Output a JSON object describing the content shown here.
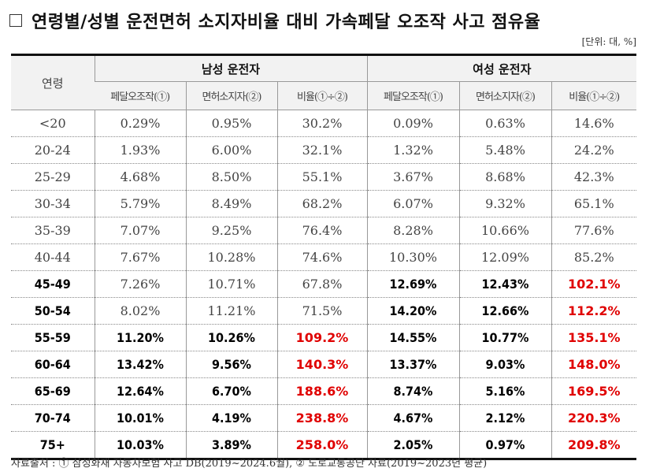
{
  "title": "연령별/성별 운전면허 소지자비율 대비 가속페달 오조작 사고 점유율",
  "unit": "[단위: 대, %]",
  "header": {
    "age": "연령",
    "male": "남성 운전자",
    "female": "여성 운전자",
    "sub": [
      "페달오조작(①)",
      "면허소지자(②)",
      "비율(①÷②)",
      "페달오조작(①)",
      "면허소지자(②)",
      "비율(①÷②)"
    ]
  },
  "rows": [
    {
      "age": "<20",
      "male": [
        "0.29%",
        "0.95%",
        "30.2%"
      ],
      "female": [
        "0.09%",
        "0.63%",
        "14.6%"
      ],
      "emphasis": {
        "age": false,
        "male": false,
        "female": false,
        "male_ratio_red": false,
        "female_ratio_red": false
      }
    },
    {
      "age": "20-24",
      "male": [
        "1.93%",
        "6.00%",
        "32.1%"
      ],
      "female": [
        "1.32%",
        "5.48%",
        "24.2%"
      ],
      "emphasis": {
        "age": false,
        "male": false,
        "female": false,
        "male_ratio_red": false,
        "female_ratio_red": false
      }
    },
    {
      "age": "25-29",
      "male": [
        "4.68%",
        "8.50%",
        "55.1%"
      ],
      "female": [
        "3.67%",
        "8.68%",
        "42.3%"
      ],
      "emphasis": {
        "age": false,
        "male": false,
        "female": false,
        "male_ratio_red": false,
        "female_ratio_red": false
      }
    },
    {
      "age": "30-34",
      "male": [
        "5.79%",
        "8.49%",
        "68.2%"
      ],
      "female": [
        "6.07%",
        "9.32%",
        "65.1%"
      ],
      "emphasis": {
        "age": false,
        "male": false,
        "female": false,
        "male_ratio_red": false,
        "female_ratio_red": false
      }
    },
    {
      "age": "35-39",
      "male": [
        "7.07%",
        "9.25%",
        "76.4%"
      ],
      "female": [
        "8.28%",
        "10.66%",
        "77.6%"
      ],
      "emphasis": {
        "age": false,
        "male": false,
        "female": false,
        "male_ratio_red": false,
        "female_ratio_red": false
      }
    },
    {
      "age": "40-44",
      "male": [
        "7.67%",
        "10.28%",
        "74.6%"
      ],
      "female": [
        "10.30%",
        "12.09%",
        "85.2%"
      ],
      "emphasis": {
        "age": false,
        "male": false,
        "female": false,
        "male_ratio_red": false,
        "female_ratio_red": false
      }
    },
    {
      "age": "45-49",
      "male": [
        "7.26%",
        "10.71%",
        "67.8%"
      ],
      "female": [
        "12.69%",
        "12.43%",
        "102.1%"
      ],
      "emphasis": {
        "age": true,
        "male": false,
        "female": true,
        "male_ratio_red": false,
        "female_ratio_red": true
      }
    },
    {
      "age": "50-54",
      "male": [
        "8.02%",
        "11.21%",
        "71.5%"
      ],
      "female": [
        "14.20%",
        "12.66%",
        "112.2%"
      ],
      "emphasis": {
        "age": true,
        "male": false,
        "female": true,
        "male_ratio_red": false,
        "female_ratio_red": true
      }
    },
    {
      "age": "55-59",
      "male": [
        "11.20%",
        "10.26%",
        "109.2%"
      ],
      "female": [
        "14.55%",
        "10.77%",
        "135.1%"
      ],
      "emphasis": {
        "age": true,
        "male": true,
        "female": true,
        "male_ratio_red": true,
        "female_ratio_red": true
      }
    },
    {
      "age": "60-64",
      "male": [
        "13.42%",
        "9.56%",
        "140.3%"
      ],
      "female": [
        "13.37%",
        "9.03%",
        "148.0%"
      ],
      "emphasis": {
        "age": true,
        "male": true,
        "female": true,
        "male_ratio_red": true,
        "female_ratio_red": true
      }
    },
    {
      "age": "65-69",
      "male": [
        "12.64%",
        "6.70%",
        "188.6%"
      ],
      "female": [
        "8.74%",
        "5.16%",
        "169.5%"
      ],
      "emphasis": {
        "age": true,
        "male": true,
        "female": true,
        "male_ratio_red": true,
        "female_ratio_red": true
      }
    },
    {
      "age": "70-74",
      "male": [
        "10.01%",
        "4.19%",
        "238.8%"
      ],
      "female": [
        "4.67%",
        "2.12%",
        "220.3%"
      ],
      "emphasis": {
        "age": true,
        "male": true,
        "female": true,
        "male_ratio_red": true,
        "female_ratio_red": true
      }
    },
    {
      "age": "75+",
      "male": [
        "10.03%",
        "3.89%",
        "258.0%"
      ],
      "female": [
        "2.05%",
        "0.97%",
        "209.8%"
      ],
      "emphasis": {
        "age": true,
        "male": true,
        "female": true,
        "male_ratio_red": true,
        "female_ratio_red": true
      }
    }
  ],
  "source": "자료출처 : ① 삼성화재 자동차보험 사고 DB(2019~2024.6월), ② 도로교통공단 자료(2019~2023년 평균)",
  "colors": {
    "highlight": "#e00000",
    "header_bg": "#f2f2f2"
  }
}
